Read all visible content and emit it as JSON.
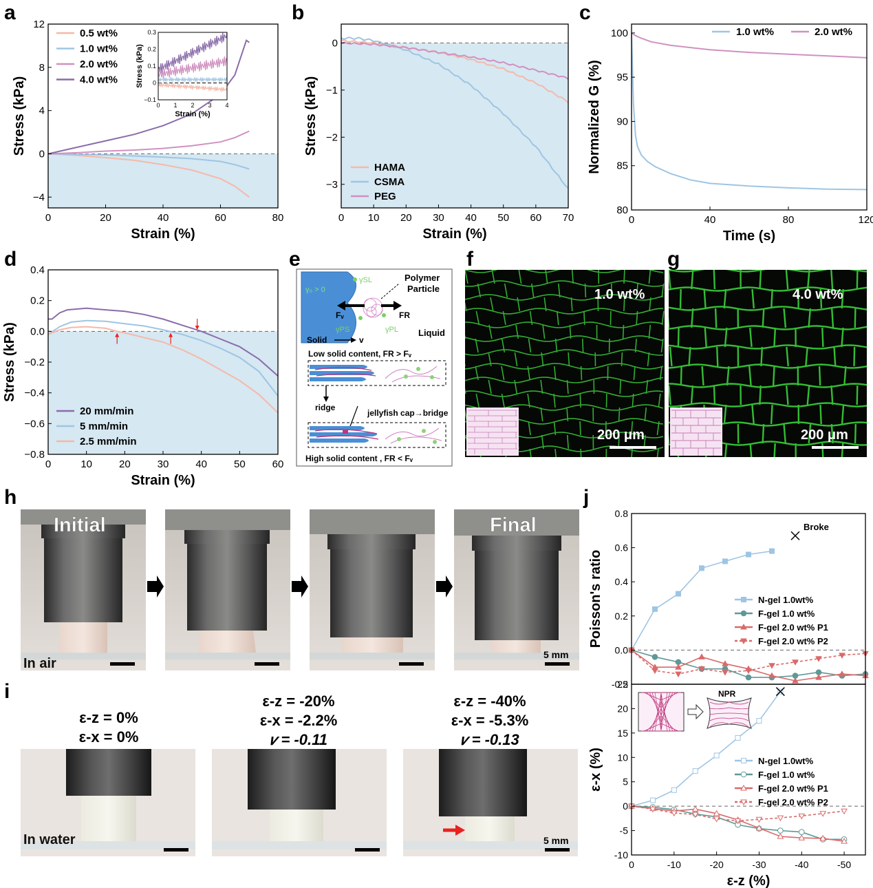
{
  "panel_letters": {
    "a": "a",
    "b": "b",
    "c": "c",
    "d": "d",
    "e": "e",
    "f": "f",
    "g": "g",
    "h": "h",
    "i": "i",
    "j": "j"
  },
  "chart_data": [
    {
      "id": "a",
      "type": "line",
      "xlabel": "Strain (%)",
      "ylabel": "Stress (kPa)",
      "xlim": [
        0,
        80
      ],
      "ylim": [
        -5,
        12
      ],
      "xticks": [
        "0",
        "20",
        "40",
        "60",
        "80"
      ],
      "yticks": [
        "−4",
        "0",
        "4",
        "8",
        "12"
      ],
      "series": [
        {
          "name": "0.5 wt%",
          "color": "#f6b8a8",
          "x": [
            0,
            10,
            20,
            30,
            40,
            50,
            60,
            65,
            70
          ],
          "y": [
            0,
            -0.15,
            -0.35,
            -0.6,
            -1.0,
            -1.5,
            -2.3,
            -3.0,
            -4.0
          ]
        },
        {
          "name": "1.0 wt%",
          "color": "#9ec5e3",
          "x": [
            0,
            10,
            20,
            30,
            40,
            50,
            60,
            65,
            70
          ],
          "y": [
            0,
            -0.05,
            -0.1,
            -0.2,
            -0.3,
            -0.45,
            -0.7,
            -1.0,
            -1.4
          ]
        },
        {
          "name": "2.0 wt%",
          "color": "#d091c0",
          "x": [
            0,
            10,
            20,
            30,
            40,
            50,
            60,
            65,
            70
          ],
          "y": [
            0,
            0.1,
            0.25,
            0.35,
            0.5,
            0.75,
            1.1,
            1.5,
            2.1
          ]
        },
        {
          "name": "4.0 wt%",
          "color": "#8a6ca9",
          "x": [
            0,
            10,
            20,
            30,
            40,
            50,
            60,
            65,
            69,
            70
          ],
          "y": [
            0,
            0.6,
            1.2,
            1.8,
            2.6,
            3.7,
            5.5,
            7.3,
            10.5,
            10.3
          ]
        }
      ],
      "inset": {
        "xlabel": "Strain (%)",
        "ylabel": "Stress (kPa)",
        "xticks": [
          "0",
          "1",
          "2",
          "3",
          "4"
        ],
        "yticks": [
          "−0.1",
          "0",
          "0.1",
          "0.2",
          "0.3"
        ],
        "xlim": [
          0,
          4
        ],
        "ylim": [
          -0.1,
          0.3
        ]
      }
    },
    {
      "id": "b",
      "type": "line",
      "xlabel": "Strain (%)",
      "ylabel": "Stress (kPa)",
      "xlim": [
        0,
        70
      ],
      "ylim": [
        -3.5,
        0.4
      ],
      "xticks": [
        "0",
        "10",
        "20",
        "30",
        "40",
        "50",
        "60",
        "70"
      ],
      "yticks": [
        "−3",
        "−2",
        "−1",
        "0"
      ],
      "series": [
        {
          "name": "HAMA",
          "color": "#f6b8a8",
          "x": [
            0,
            10,
            20,
            30,
            40,
            50,
            60,
            70
          ],
          "y": [
            0.05,
            0,
            -0.1,
            -0.2,
            -0.35,
            -0.55,
            -0.85,
            -1.25
          ]
        },
        {
          "name": "CSMA",
          "color": "#9ec5e3",
          "x": [
            0,
            5,
            10,
            20,
            30,
            40,
            50,
            60,
            70
          ],
          "y": [
            0.1,
            0.1,
            0.05,
            -0.15,
            -0.45,
            -0.9,
            -1.5,
            -2.2,
            -3.1
          ]
        },
        {
          "name": "PEG",
          "color": "#d091c0",
          "x": [
            0,
            10,
            20,
            30,
            40,
            50,
            60,
            70
          ],
          "y": [
            0,
            -0.03,
            -0.1,
            -0.2,
            -0.3,
            -0.42,
            -0.58,
            -0.75
          ]
        }
      ]
    },
    {
      "id": "c",
      "type": "line",
      "xlabel": "Time (s)",
      "ylabel": "Normalized G (%)",
      "xlim": [
        0,
        120
      ],
      "ylim": [
        80,
        101
      ],
      "xticks": [
        "0",
        "40",
        "80",
        "120"
      ],
      "yticks": [
        "80",
        "85",
        "90",
        "95",
        "100"
      ],
      "series": [
        {
          "name": "1.0 wt%",
          "color": "#9ec5e3",
          "x": [
            0,
            0.5,
            1,
            2,
            3,
            5,
            8,
            12,
            20,
            30,
            40,
            60,
            80,
            100,
            120
          ],
          "y": [
            100,
            96,
            92,
            88.5,
            87.2,
            86.2,
            85.5,
            84.9,
            84.1,
            83.4,
            83,
            82.7,
            82.5,
            82.35,
            82.3
          ]
        },
        {
          "name": "2.0 wt%",
          "color": "#d091c0",
          "x": [
            0,
            2,
            5,
            10,
            20,
            40,
            60,
            80,
            100,
            120
          ],
          "y": [
            100,
            99.7,
            99.4,
            99,
            98.6,
            98.1,
            97.8,
            97.6,
            97.4,
            97.2
          ]
        }
      ]
    },
    {
      "id": "d",
      "type": "line",
      "xlabel": "Strain (%)",
      "ylabel": "Stress (kPa)",
      "xlim": [
        0,
        60
      ],
      "ylim": [
        -0.8,
        0.4
      ],
      "xticks": [
        "0",
        "10",
        "20",
        "30",
        "40",
        "50",
        "60"
      ],
      "yticks": [
        "−0.8",
        "−0.6",
        "−0.4",
        "−0.2",
        "0.0",
        "0.2",
        "0.4"
      ],
      "series": [
        {
          "name": "20 mm/min",
          "color": "#8a6ca9",
          "x": [
            0,
            1,
            3,
            5,
            10,
            15,
            20,
            25,
            30,
            35,
            40,
            45,
            50,
            55,
            60
          ],
          "y": [
            0.08,
            0.08,
            0.12,
            0.14,
            0.15,
            0.14,
            0.13,
            0.11,
            0.08,
            0.04,
            0.0,
            -0.05,
            -0.1,
            -0.18,
            -0.29
          ]
        },
        {
          "name": "5 mm/min",
          "color": "#9ec5e3",
          "x": [
            0,
            3,
            6,
            10,
            15,
            20,
            25,
            30,
            35,
            40,
            45,
            50,
            55,
            60
          ],
          "y": [
            -0.02,
            0.03,
            0.06,
            0.07,
            0.065,
            0.05,
            0.035,
            0.01,
            -0.02,
            -0.06,
            -0.11,
            -0.17,
            -0.26,
            -0.42
          ]
        },
        {
          "name": "2.5 mm/min",
          "color": "#f6b8a8",
          "x": [
            0,
            3,
            6,
            10,
            15,
            18,
            20,
            25,
            30,
            35,
            40,
            45,
            50,
            55,
            60
          ],
          "y": [
            -0.02,
            0.01,
            0.025,
            0.03,
            0.02,
            0.0,
            -0.01,
            -0.04,
            -0.07,
            -0.12,
            -0.18,
            -0.25,
            -0.32,
            -0.41,
            -0.53
          ]
        }
      ],
      "arrows_at_strain": [
        18,
        32,
        40
      ]
    },
    {
      "id": "j-top",
      "type": "line",
      "xlabel": "",
      "ylabel": "Poisson's ratio",
      "xlim": [
        0,
        -50
      ],
      "ylim": [
        -0.2,
        0.8
      ],
      "yticks": [
        "-0.2",
        "0.0",
        "0.2",
        "0.4",
        "0.6",
        "0.8"
      ],
      "annotation": "Broke",
      "series": [
        {
          "name": "N-gel 1.0wt%",
          "color": "#9ec5e3",
          "marker": "square-filled",
          "x": [
            0,
            -5,
            -10,
            -15,
            -20,
            -25,
            -30
          ],
          "y": [
            0,
            0.24,
            0.33,
            0.48,
            0.52,
            0.56,
            0.58
          ]
        },
        {
          "name": "F-gel 1.0 wt%",
          "color": "#5e9996",
          "marker": "circle-filled",
          "x": [
            0,
            -5,
            -10,
            -15,
            -20,
            -25,
            -30,
            -35,
            -40,
            -45,
            -50
          ],
          "y": [
            0,
            -0.04,
            -0.07,
            -0.11,
            -0.11,
            -0.16,
            -0.16,
            -0.15,
            -0.13,
            -0.15,
            -0.14
          ]
        },
        {
          "name": "F-gel 2.0 wt% P1",
          "color": "#d96a6a",
          "marker": "triangle-filled",
          "x": [
            0,
            -5,
            -10,
            -15,
            -20,
            -25,
            -30,
            -35,
            -40,
            -45,
            -50
          ],
          "y": [
            0,
            -0.1,
            -0.1,
            -0.04,
            -0.08,
            -0.11,
            -0.15,
            -0.18,
            -0.16,
            -0.14,
            -0.15
          ]
        },
        {
          "name": "F-gel 2.0 wt% P2",
          "color": "#d96a6a",
          "marker": "triangle-down-filled",
          "dashed": true,
          "x": [
            0,
            -5,
            -10,
            -15,
            -20,
            -25,
            -30,
            -35,
            -40,
            -45,
            -50
          ],
          "y": [
            0,
            -0.12,
            -0.14,
            -0.11,
            -0.13,
            -0.12,
            -0.09,
            -0.07,
            -0.05,
            -0.03,
            -0.02
          ]
        }
      ]
    },
    {
      "id": "j-bottom",
      "type": "line",
      "xlabel": "ε-z (%)",
      "ylabel": "ε-x (%)",
      "xlim": [
        0,
        -55
      ],
      "ylim": [
        -10,
        25
      ],
      "xticks": [
        "0",
        "-10",
        "-20",
        "-30",
        "-40",
        "-50"
      ],
      "yticks": [
        "-10",
        "-5",
        "0",
        "5",
        "10",
        "15",
        "20",
        "25"
      ],
      "inset_labels": {
        "npr": "NPR"
      },
      "series": [
        {
          "name": "N-gel 1.0wt%",
          "color": "#9ec5e3",
          "marker": "square-open",
          "x": [
            0,
            -5,
            -10,
            -15,
            -20,
            -25,
            -30,
            -35
          ],
          "y": [
            0,
            1.2,
            3.3,
            7.2,
            10.4,
            14,
            17.5,
            23.5
          ]
        },
        {
          "name": "F-gel 1.0 wt%",
          "color": "#5e9996",
          "marker": "circle-open",
          "x": [
            0,
            -5,
            -10,
            -15,
            -20,
            -25,
            -30,
            -35,
            -40,
            -45,
            -50
          ],
          "y": [
            0,
            -0.2,
            -0.7,
            -1.6,
            -2.2,
            -3.8,
            -4.6,
            -5.0,
            -5.3,
            -6.8,
            -6.8
          ]
        },
        {
          "name": "F-gel 2.0 wt% P1",
          "color": "#d96a6a",
          "marker": "triangle-open",
          "x": [
            0,
            -5,
            -10,
            -15,
            -20,
            -25,
            -30,
            -35,
            -40,
            -45,
            -50
          ],
          "y": [
            0,
            -0.5,
            -1.0,
            -0.6,
            -1.5,
            -2.8,
            -4.5,
            -6.2,
            -6.5,
            -6.6,
            -7.2
          ]
        },
        {
          "name": "F-gel 2.0 wt% P2",
          "color": "#d96a6a",
          "marker": "triangle-down-open",
          "dashed": true,
          "x": [
            0,
            -5,
            -10,
            -15,
            -20,
            -25,
            -30,
            -35,
            -40,
            -45,
            -50
          ],
          "y": [
            0,
            -0.6,
            -1.4,
            -1.7,
            -2.6,
            -3.0,
            -2.7,
            -2.4,
            -2.0,
            -1.5,
            -1.0
          ]
        }
      ]
    }
  ],
  "panel_e": {
    "gamma0": "γ₀ > 0",
    "gammaSL": "γSL",
    "gammaPS": "γPS",
    "gammaPL": "γPL",
    "Fv": "Fᵥ",
    "FR": "FR",
    "polymer": "Polymer",
    "particle": "Particle",
    "solid": "Solid",
    "v": "v",
    "liquid": "Liquid",
    "low": "Low solid content, FR > Fᵥ",
    "ridge": "ridge",
    "jelly": "jellyfish cap→bridge",
    "high": "High solid content , FR < Fᵥ"
  },
  "panel_f": {
    "label": "1.0 wt%",
    "scale": "200 μm"
  },
  "panel_g": {
    "label": "4.0 wt%",
    "scale": "200 μm"
  },
  "panel_h": {
    "initial": "Initial",
    "final": "Final",
    "in_air": "In air",
    "scale": "5 mm"
  },
  "panel_i": {
    "frames": [
      {
        "ez": "ε-z = 0%",
        "ex": "ε-x = 0%",
        "nu": ""
      },
      {
        "ez": "ε-z = -20%",
        "ex": "ε-x = -2.2%",
        "nu": "𝑣 = -0.11"
      },
      {
        "ez": "ε-z = -40%",
        "ex": "ε-x = -5.3%",
        "nu": "𝑣 = -0.13"
      }
    ],
    "in_water": "In water",
    "scale": "5 mm"
  },
  "colors": {
    "shade": "#d6e8f2",
    "grid_green": "#4cd84c",
    "arrow_red": "#e8221f"
  }
}
